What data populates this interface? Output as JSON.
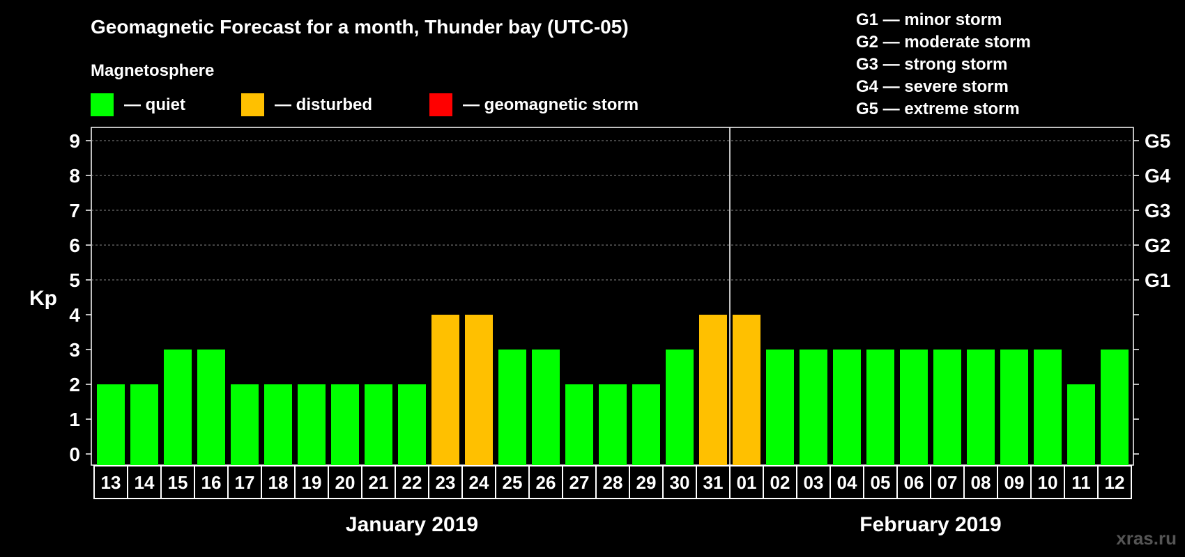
{
  "chart_data": {
    "type": "bar",
    "title": "Geomagnetic Forecast for a month, Thunder bay (UTC-05)",
    "legend_title": "Magnetosphere",
    "legend": [
      {
        "label": "— quiet",
        "color": "#00ff00"
      },
      {
        "label": "— disturbed",
        "color": "#ffc000"
      },
      {
        "label": "— geomagnetic storm",
        "color": "#ff0000"
      }
    ],
    "g_scale": [
      "G1 — minor storm",
      "G2 — moderate storm",
      "G3 — strong storm",
      "G4 — severe storm",
      "G5 — extreme storm"
    ],
    "ylabel": "Kp",
    "ylim": [
      0,
      9
    ],
    "yticks": [
      "0",
      "1",
      "2",
      "3",
      "4",
      "5",
      "6",
      "7",
      "8",
      "9"
    ],
    "right_labels": [
      {
        "value": 5,
        "label": "G1"
      },
      {
        "value": 6,
        "label": "G2"
      },
      {
        "value": 7,
        "label": "G3"
      },
      {
        "value": 8,
        "label": "G4"
      },
      {
        "value": 9,
        "label": "G5"
      }
    ],
    "categories": [
      "13",
      "14",
      "15",
      "16",
      "17",
      "18",
      "19",
      "20",
      "21",
      "22",
      "23",
      "24",
      "25",
      "26",
      "27",
      "28",
      "29",
      "30",
      "31",
      "01",
      "02",
      "03",
      "04",
      "05",
      "06",
      "07",
      "08",
      "09",
      "10",
      "11",
      "12"
    ],
    "values": [
      2,
      2,
      3,
      3,
      2,
      2,
      2,
      2,
      2,
      2,
      4,
      4,
      3,
      3,
      2,
      2,
      2,
      3,
      4,
      4,
      3,
      3,
      3,
      3,
      3,
      3,
      3,
      3,
      3,
      2,
      3
    ],
    "months": [
      {
        "label": "January 2019",
        "start": 0,
        "end": 18
      },
      {
        "label": "February 2019",
        "start": 19,
        "end": 30
      }
    ],
    "grid": true
  },
  "watermark": "xras.ru"
}
